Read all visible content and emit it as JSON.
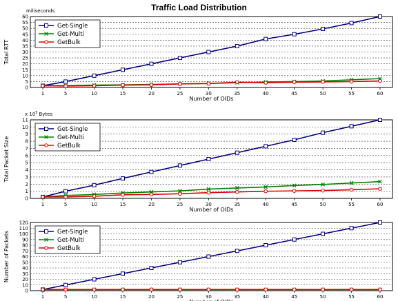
{
  "title": "Traffic Load Distribution",
  "chart_data": [
    {
      "type": "line",
      "unit_note": "miliseconds",
      "xlabel": "Number of OIDs",
      "ylabel": "Total RTT",
      "x": [
        1,
        5,
        10,
        15,
        20,
        25,
        30,
        35,
        40,
        45,
        50,
        55,
        60
      ],
      "ylim": [
        0,
        60
      ],
      "yticks": [
        0,
        5,
        10,
        15,
        20,
        25,
        30,
        35,
        40,
        45,
        50,
        55,
        60
      ],
      "grid": "horizontal",
      "legend": "top-left",
      "series": [
        {
          "name": "Get-Single",
          "color": "#000080",
          "marker": "square",
          "values": [
            1.5,
            5,
            10,
            15,
            20,
            25,
            30,
            35,
            41,
            45,
            49.5,
            54.5,
            60
          ]
        },
        {
          "name": "Get-Multi",
          "color": "#008000",
          "marker": "x",
          "values": [
            1.5,
            1.6,
            2,
            2.2,
            2.6,
            3,
            3.4,
            4,
            4.6,
            5,
            5.5,
            6.5,
            7.5
          ]
        },
        {
          "name": "GetBulk",
          "color": "#e00000",
          "marker": "circle",
          "values": [
            1.5,
            1.2,
            1.5,
            2,
            2.2,
            3,
            3.3,
            4.5,
            4,
            4.5,
            4.7,
            5,
            5.5
          ]
        }
      ]
    },
    {
      "type": "line",
      "unit_note_base": "x 10",
      "unit_note_exp": "5",
      "unit_note_suffix": "Bytes",
      "xlabel": "Number of OIDs",
      "ylabel": "Total Packet Size",
      "x": [
        1,
        5,
        10,
        15,
        20,
        25,
        30,
        35,
        40,
        45,
        50,
        55,
        60
      ],
      "ylim": [
        0,
        11
      ],
      "yticks": [
        0,
        1,
        2,
        3,
        4,
        5,
        6,
        7,
        8,
        9,
        10,
        11
      ],
      "grid": "horizontal",
      "legend": "top-left",
      "series": [
        {
          "name": "Get-Single",
          "color": "#000080",
          "marker": "square",
          "values": [
            0.2,
            1,
            1.85,
            2.8,
            3.7,
            4.6,
            5.5,
            6.4,
            7.3,
            8.2,
            9.2,
            10.1,
            11
          ]
        },
        {
          "name": "Get-Multi",
          "color": "#008000",
          "marker": "x",
          "values": [
            0.2,
            0.4,
            0.55,
            0.75,
            0.9,
            1.05,
            1.3,
            1.45,
            1.6,
            1.8,
            1.95,
            2.15,
            2.35
          ]
        },
        {
          "name": "GetBulk",
          "color": "#e00000",
          "marker": "circle",
          "values": [
            0.2,
            0.2,
            0.3,
            0.5,
            0.55,
            0.65,
            0.8,
            0.9,
            1.0,
            1.05,
            1.1,
            1.2,
            1.35
          ]
        }
      ]
    },
    {
      "type": "line",
      "xlabel": "Number of OIDs",
      "ylabel": "Number of Packets",
      "x": [
        1,
        5,
        10,
        15,
        20,
        25,
        30,
        35,
        40,
        45,
        50,
        55,
        60
      ],
      "ylim": [
        0,
        120
      ],
      "yticks": [
        0,
        10,
        20,
        30,
        40,
        50,
        60,
        70,
        80,
        90,
        100,
        110,
        120
      ],
      "grid": "horizontal",
      "legend": "top-left",
      "series": [
        {
          "name": "Get-Single",
          "color": "#000080",
          "marker": "square",
          "values": [
            2,
            10,
            20,
            30,
            40,
            50,
            60,
            70,
            80,
            90,
            100,
            110,
            120
          ]
        },
        {
          "name": "Get-Multi",
          "color": "#008000",
          "marker": "x",
          "values": [
            2,
            2,
            2,
            2,
            2,
            2,
            2,
            2,
            2,
            2,
            2,
            2,
            2
          ]
        },
        {
          "name": "GetBulk",
          "color": "#e00000",
          "marker": "circle",
          "values": [
            2,
            2,
            2,
            2,
            2,
            2,
            2,
            2,
            2,
            2,
            2,
            2,
            2
          ]
        }
      ]
    }
  ]
}
